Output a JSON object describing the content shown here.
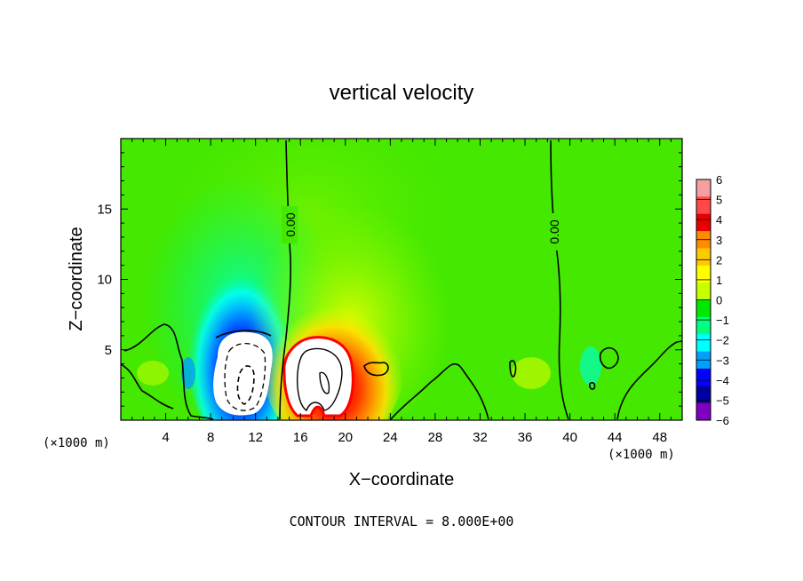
{
  "chart_data": {
    "type": "heatmap",
    "title": "vertical velocity",
    "xlabel": "X−coordinate",
    "ylabel": "Z−coordinate",
    "x_unit_left": "(×1000 m)",
    "x_unit_right": "(×1000 m)",
    "xlim": [
      0,
      50
    ],
    "ylim": [
      0,
      20
    ],
    "x_ticks": [
      4,
      8,
      12,
      16,
      20,
      24,
      28,
      32,
      36,
      40,
      44,
      48
    ],
    "y_ticks": [
      5,
      10,
      15
    ],
    "contour_labels": [
      {
        "text": "0.00",
        "x": 15.0,
        "z": 14.5
      },
      {
        "text": "0.00",
        "x": 38.5,
        "z": 14.0
      }
    ],
    "footer": "CONTOUR INTERVAL = 8.000E+00",
    "colorbar": {
      "levels": [
        "6",
        "5",
        "4",
        "3",
        "2",
        "1",
        "0",
        "−1",
        "−2",
        "−3",
        "−4",
        "−5",
        "−6"
      ],
      "colors": [
        "#f4a0a0",
        "#ff4848",
        "#e80000",
        "#ff8c00",
        "#ffc800",
        "#ffff00",
        "#c8ff00",
        "#00e800",
        "#00ff80",
        "#00ffff",
        "#00a0ff",
        "#0000ff",
        "#0000a0",
        "#8000c0"
      ]
    },
    "features": [
      {
        "name": "downdraft",
        "x_center": 11,
        "z_center": 3.5,
        "sign": "negative"
      },
      {
        "name": "updraft",
        "x_center": 17.5,
        "z_center": 3.5,
        "sign": "positive"
      }
    ]
  }
}
